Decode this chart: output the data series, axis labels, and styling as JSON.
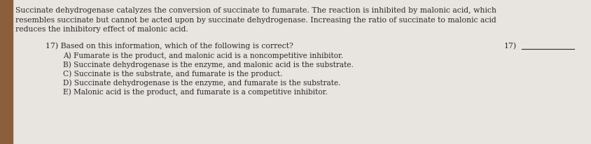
{
  "bg_color": "#e8e5e0",
  "text_color": "#2a2a2a",
  "border_color": "#8B5E3C",
  "paragraph_lines": [
    "Succinate dehydrogenase catalyzes the conversion of succinate to fumarate. The reaction is inhibited by malonic acid, which",
    "resembles succinate but cannot be acted upon by succinate dehydrogenase. Increasing the ratio of succinate to malonic acid",
    "reduces the inhibitory effect of malonic acid."
  ],
  "question": "17) Based on this information, which of the following is correct?",
  "label": "17)",
  "choices": [
    "A) Fumarate is the product, and malonic acid is a noncompetitive inhibitor.",
    "B) Succinate dehydrogenase is the enzyme, and malonic acid is the substrate.",
    "C) Succinate is the substrate, and fumarate is the product.",
    "D) Succinate dehydrogenase is the enzyme, and fumarate is the substrate.",
    "E) Malonic acid is the product, and fumarate is a competitive inhibitor."
  ],
  "para_fontsize": 7.8,
  "q_fontsize": 7.8,
  "choice_fontsize": 7.6,
  "label_fontsize": 7.8
}
